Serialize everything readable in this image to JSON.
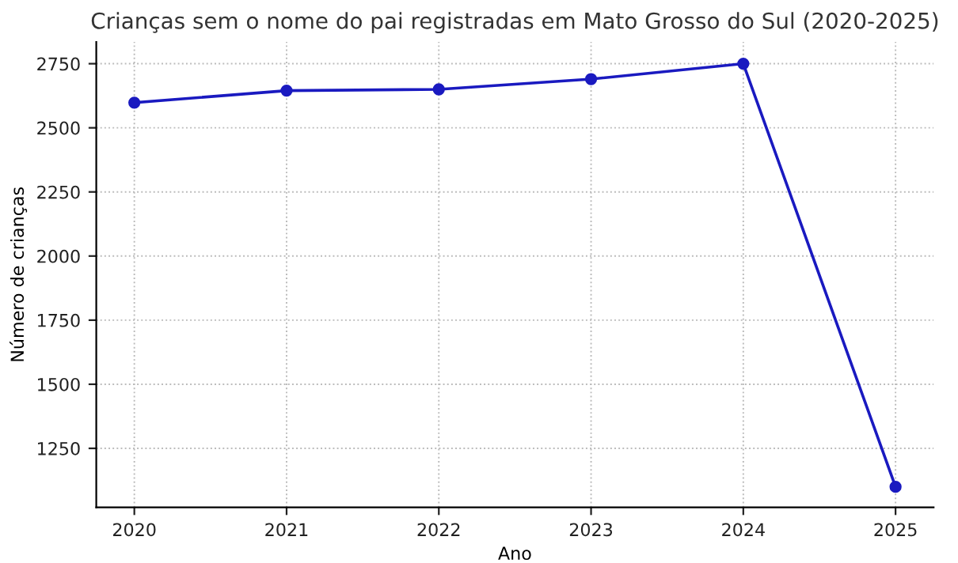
{
  "chart_data": {
    "type": "line",
    "title": "Crianças sem o nome do pai registradas em Mato Grosso do Sul (2020-2025)",
    "xlabel": "Ano",
    "ylabel": "Número de crianças",
    "x": [
      2020,
      2021,
      2022,
      2023,
      2024,
      2025
    ],
    "series": [
      {
        "color": "#1a1ac0",
        "values": [
          2598,
          2645,
          2650,
          2690,
          2750,
          1100
        ]
      }
    ],
    "xlim": [
      2019.75,
      2025.25
    ],
    "xticks": [
      2020,
      2021,
      2022,
      2023,
      2024,
      2025
    ],
    "ylim": [
      1020,
      2835
    ],
    "yticks": [
      1250,
      1500,
      1750,
      2000,
      2250,
      2500,
      2750
    ],
    "grid": true,
    "marker": "circle",
    "line_style": "solid"
  }
}
